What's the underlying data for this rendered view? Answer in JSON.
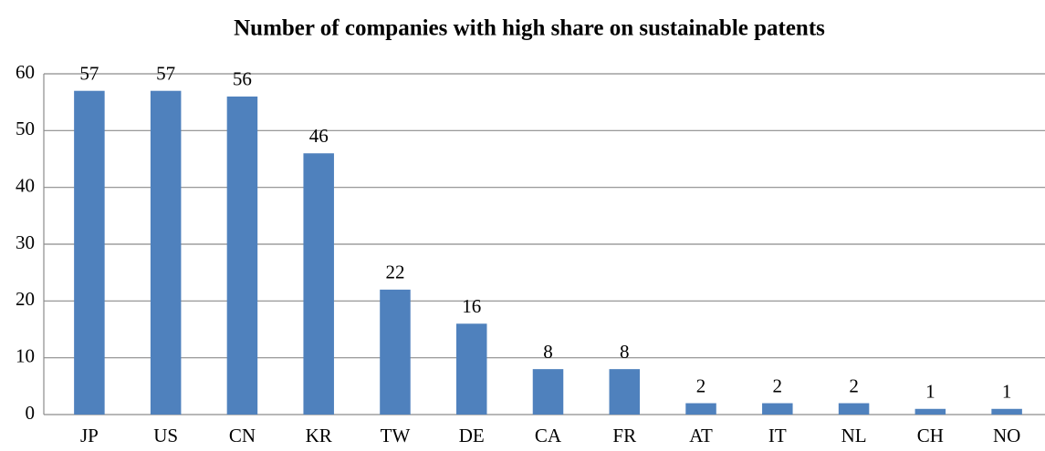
{
  "chart_data": {
    "type": "bar",
    "title": "Number of companies with high share on sustainable patents",
    "categories": [
      "JP",
      "US",
      "CN",
      "KR",
      "TW",
      "DE",
      "CA",
      "FR",
      "AT",
      "IT",
      "NL",
      "CH",
      "NO"
    ],
    "values": [
      57,
      57,
      56,
      46,
      22,
      16,
      8,
      8,
      2,
      2,
      2,
      1,
      1
    ],
    "color": "#4f81bd",
    "ylim": [
      0,
      60
    ],
    "yticks": [
      0,
      10,
      20,
      30,
      40,
      50,
      60
    ],
    "grid": true
  }
}
